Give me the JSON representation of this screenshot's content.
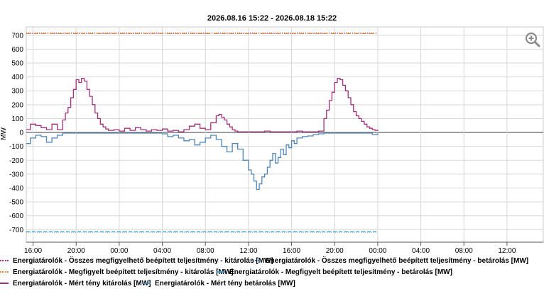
{
  "chart_data": {
    "type": "line",
    "title": "2026.08.16 15:22 - 2026.08.18 15:22",
    "ylabel": "MW",
    "xlabel": "",
    "y_ticks": [
      700,
      600,
      500,
      400,
      300,
      200,
      100,
      0,
      -100,
      -200,
      -300,
      -400,
      -500,
      -600,
      -700
    ],
    "ylim": [
      -790,
      760
    ],
    "x_tick_labels": [
      "16:00",
      "20:00",
      "00:00",
      "04:00",
      "08:00",
      "12:00",
      "16:00",
      "20:00",
      "00:00",
      "04:00",
      "08:00",
      "12:00"
    ],
    "x_tick_hours": [
      16,
      20,
      24,
      28,
      32,
      36,
      40,
      44,
      48,
      52,
      56,
      60
    ],
    "xlim_hours": [
      15.37,
      63.37
    ],
    "grid": true,
    "series": [
      {
        "name": "Energiatárolók - Összes megfigyelhető beépített teljesítmény - kitárolás [MW]",
        "color": "#a0307a",
        "style": "dotted",
        "x_hours": [
          15.37,
          25.0,
          35.0,
          48.0
        ],
        "values": [
          715,
          715,
          715,
          715
        ]
      },
      {
        "name": "Energiatárolók - Összes megfigyelhető beépített teljesítmény - betárolás [MW]",
        "color": "#4f86b8",
        "style": "dotted",
        "x_hours": [
          15.37,
          25.0,
          35.0,
          48.0
        ],
        "values": [
          -718,
          -718,
          -718,
          -718
        ]
      },
      {
        "name": "Energiatárolók - Megfigyelt beépített teljesítmény - kitárolás [MW]",
        "color": "#e48a3a",
        "style": "dashdot",
        "x_hours": [
          15.37,
          48.0
        ],
        "values": [
          712,
          712
        ]
      },
      {
        "name": "Energiatárolók - Megfigyelt beépített teljesítmény - betárolás [MW]",
        "color": "#3aa0c8",
        "style": "dashed",
        "x_hours": [
          15.37,
          48.0
        ],
        "values": [
          -715,
          -715
        ]
      },
      {
        "name": "Energiatárolók - Mért tény kitárolás [MW]",
        "color": "#a0307a",
        "style": "solid",
        "x_hours": [
          15.37,
          15.75,
          16.25,
          16.75,
          17.25,
          17.75,
          18.25,
          18.75,
          19.0,
          19.25,
          19.5,
          19.75,
          20.0,
          20.25,
          20.5,
          20.75,
          21.0,
          21.25,
          21.5,
          21.75,
          22.0,
          22.25,
          22.5,
          22.75,
          23.0,
          23.5,
          24.0,
          24.5,
          25.0,
          25.5,
          26.0,
          26.5,
          27.0,
          27.5,
          28.0,
          28.5,
          29.0,
          29.5,
          30.0,
          30.5,
          31.0,
          31.5,
          32.0,
          32.5,
          33.0,
          33.25,
          33.5,
          33.75,
          34.0,
          34.25,
          34.5,
          34.75,
          35.0,
          35.5,
          36.0,
          36.5,
          37.0,
          37.5,
          38.0,
          38.5,
          39.0,
          39.5,
          40.0,
          40.5,
          41.0,
          41.5,
          42.0,
          42.5,
          43.0,
          43.25,
          43.5,
          43.75,
          44.0,
          44.25,
          44.5,
          44.75,
          45.0,
          45.25,
          45.5,
          45.75,
          46.0,
          46.25,
          46.5,
          46.75,
          47.0,
          47.25,
          47.5,
          47.75,
          48.0
        ],
        "values": [
          20,
          60,
          50,
          35,
          20,
          60,
          20,
          90,
          140,
          180,
          250,
          310,
          380,
          360,
          390,
          370,
          310,
          260,
          200,
          140,
          100,
          60,
          40,
          25,
          15,
          20,
          10,
          30,
          15,
          35,
          20,
          10,
          20,
          15,
          25,
          10,
          15,
          5,
          20,
          45,
          60,
          30,
          20,
          70,
          120,
          130,
          110,
          90,
          60,
          40,
          20,
          10,
          5,
          5,
          5,
          5,
          5,
          10,
          5,
          5,
          5,
          5,
          5,
          10,
          5,
          5,
          5,
          10,
          100,
          160,
          230,
          290,
          360,
          390,
          380,
          340,
          300,
          250,
          200,
          150,
          120,
          100,
          80,
          60,
          40,
          30,
          20,
          15,
          10
        ]
      },
      {
        "name": "Energiatárolók - Mért tény betárolás [MW]",
        "color": "#4f86b8",
        "style": "solid",
        "x_hours": [
          15.37,
          15.75,
          16.25,
          16.75,
          17.25,
          17.75,
          18.25,
          18.75,
          19.5,
          20.0,
          21.0,
          22.0,
          23.0,
          24.0,
          25.0,
          26.0,
          27.0,
          28.0,
          28.5,
          29.0,
          29.5,
          30.0,
          30.5,
          31.0,
          31.5,
          32.0,
          32.5,
          33.0,
          33.5,
          34.0,
          34.5,
          35.0,
          35.5,
          36.0,
          36.25,
          36.5,
          36.75,
          37.0,
          37.25,
          37.5,
          37.75,
          38.0,
          38.25,
          38.5,
          38.75,
          39.0,
          39.25,
          39.5,
          39.75,
          40.0,
          40.25,
          40.5,
          41.0,
          41.5,
          42.0,
          42.5,
          43.0,
          44.0,
          45.0,
          46.0,
          47.0,
          47.5,
          48.0
        ],
        "values": [
          -80,
          -40,
          -20,
          -30,
          -70,
          -40,
          -20,
          -5,
          -5,
          -5,
          -5,
          -5,
          -5,
          -5,
          -5,
          -5,
          -5,
          -10,
          -30,
          -20,
          -40,
          -60,
          -50,
          -90,
          -70,
          -40,
          -20,
          -50,
          -100,
          -140,
          -80,
          -120,
          -200,
          -270,
          -300,
          -350,
          -410,
          -370,
          -320,
          -300,
          -250,
          -200,
          -150,
          -220,
          -180,
          -120,
          -160,
          -90,
          -110,
          -60,
          -80,
          -40,
          -30,
          -25,
          -15,
          -10,
          -5,
          -5,
          -5,
          -5,
          -5,
          -15,
          -5
        ]
      }
    ]
  },
  "legend": {
    "items": [
      "Energiatárolók - Összes megfigyelhető beépített teljesítmény - kitárolás [MW]",
      "Energiatárolók - Összes megfigyelhető beépített teljesítmény - betárolás [MW]",
      "Energiatárolók - Megfigyelt beépített teljesítmény - kitárolás [MW]",
      "Energiatárolók - Megfigyelt beépített teljesítmény - betárolás [MW]",
      "Energiatárolók - Mért tény kitárolás [MW]",
      "Energiatárolók - Mért tény betárolás [MW]"
    ]
  },
  "controls": {
    "zoom_icon": "zoom-in-icon"
  }
}
